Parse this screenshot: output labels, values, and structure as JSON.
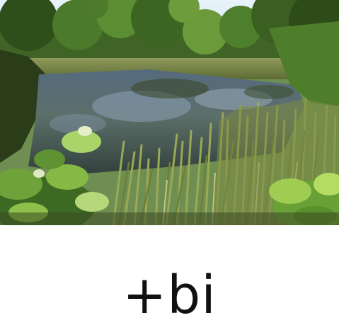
{
  "image": {
    "subject": "pond-scene",
    "colors": {
      "sky": "#dfeef8",
      "water": "#4a5f73",
      "foliage_dark": "#2f4a1c",
      "foliage_light": "#8fbf3f",
      "reeds": "#9aa955"
    }
  },
  "caption": {
    "text": "+bi"
  }
}
